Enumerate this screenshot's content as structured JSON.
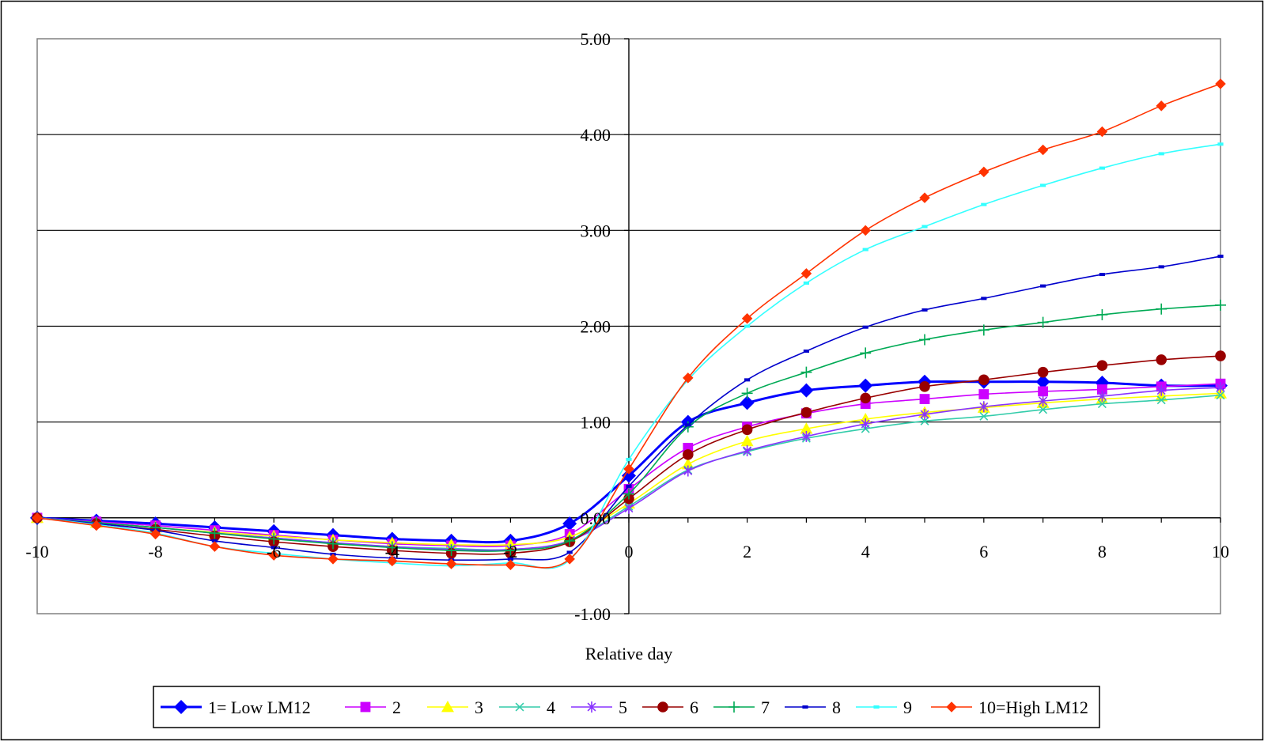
{
  "chart_data": {
    "type": "line",
    "title": "",
    "xlabel": "Relative day",
    "ylabel": "",
    "xlim": [
      -10,
      10
    ],
    "ylim": [
      -1,
      5
    ],
    "grid": "horizontal",
    "legend_position": "bottom",
    "x_ticks": [
      "-10",
      "-8",
      "-6",
      "-4",
      "-2",
      "0",
      "2",
      "4",
      "6",
      "8",
      "10"
    ],
    "y_ticks": [
      "-1.00",
      "0.00",
      "1.00",
      "2.00",
      "3.00",
      "4.00",
      "5.00"
    ],
    "x": [
      -10,
      -9,
      -8,
      -7,
      -6,
      -5,
      -4,
      -3,
      -2,
      -1,
      0,
      1,
      2,
      3,
      4,
      5,
      6,
      7,
      8,
      9,
      10
    ],
    "series": [
      {
        "name": "1= Low LM12",
        "color": "#0000ff",
        "marker": "diamond",
        "values": [
          0.0,
          -0.03,
          -0.06,
          -0.1,
          -0.14,
          -0.18,
          -0.22,
          -0.24,
          -0.24,
          -0.06,
          0.44,
          1.0,
          1.2,
          1.33,
          1.38,
          1.42,
          1.42,
          1.42,
          1.41,
          1.38,
          1.38
        ]
      },
      {
        "name": "2",
        "color": "#cc00ff",
        "marker": "square",
        "values": [
          0.0,
          -0.04,
          -0.08,
          -0.13,
          -0.18,
          -0.23,
          -0.27,
          -0.29,
          -0.29,
          -0.17,
          0.3,
          0.73,
          0.95,
          1.09,
          1.19,
          1.24,
          1.29,
          1.32,
          1.34,
          1.37,
          1.4
        ]
      },
      {
        "name": "3",
        "color": "#ffff00",
        "marker": "triangle",
        "values": [
          0.0,
          -0.05,
          -0.1,
          -0.15,
          -0.19,
          -0.23,
          -0.26,
          -0.28,
          -0.28,
          -0.2,
          0.15,
          0.56,
          0.8,
          0.93,
          1.03,
          1.1,
          1.15,
          1.2,
          1.24,
          1.27,
          1.3
        ]
      },
      {
        "name": "4",
        "color": "#33ccaa",
        "marker": "x",
        "values": [
          0.0,
          -0.05,
          -0.1,
          -0.16,
          -0.21,
          -0.26,
          -0.3,
          -0.32,
          -0.33,
          -0.24,
          0.12,
          0.5,
          0.69,
          0.83,
          0.93,
          1.01,
          1.06,
          1.13,
          1.19,
          1.23,
          1.28
        ]
      },
      {
        "name": "5",
        "color": "#8833ff",
        "marker": "star",
        "values": [
          0.0,
          -0.05,
          -0.1,
          -0.16,
          -0.21,
          -0.26,
          -0.3,
          -0.33,
          -0.33,
          -0.24,
          0.1,
          0.49,
          0.7,
          0.85,
          0.98,
          1.08,
          1.16,
          1.22,
          1.27,
          1.33,
          1.36
        ]
      },
      {
        "name": "6",
        "color": "#990000",
        "marker": "circle",
        "values": [
          0.0,
          -0.06,
          -0.12,
          -0.19,
          -0.25,
          -0.3,
          -0.34,
          -0.37,
          -0.37,
          -0.25,
          0.2,
          0.66,
          0.92,
          1.1,
          1.25,
          1.37,
          1.44,
          1.52,
          1.59,
          1.65,
          1.69
        ]
      },
      {
        "name": "7",
        "color": "#00aa55",
        "marker": "plus",
        "values": [
          0.0,
          -0.05,
          -0.1,
          -0.16,
          -0.22,
          -0.27,
          -0.31,
          -0.34,
          -0.34,
          -0.24,
          0.25,
          0.95,
          1.3,
          1.52,
          1.72,
          1.86,
          1.96,
          2.04,
          2.12,
          2.18,
          2.22
        ]
      },
      {
        "name": "8",
        "color": "#0000cc",
        "marker": "dash",
        "values": [
          0.0,
          -0.06,
          -0.13,
          -0.24,
          -0.31,
          -0.38,
          -0.42,
          -0.44,
          -0.43,
          -0.36,
          0.33,
          0.97,
          1.44,
          1.74,
          1.99,
          2.17,
          2.29,
          2.42,
          2.54,
          2.62,
          2.73
        ]
      },
      {
        "name": "9",
        "color": "#33ffff",
        "marker": "dash",
        "values": [
          0.0,
          -0.07,
          -0.16,
          -0.3,
          -0.37,
          -0.43,
          -0.47,
          -0.5,
          -0.47,
          -0.44,
          0.61,
          1.44,
          2.0,
          2.45,
          2.8,
          3.04,
          3.27,
          3.47,
          3.65,
          3.8,
          3.9
        ]
      },
      {
        "name": "10=High LM12",
        "color": "#ff3300",
        "marker": "diamond-small",
        "values": [
          0.0,
          -0.08,
          -0.17,
          -0.3,
          -0.39,
          -0.43,
          -0.45,
          -0.48,
          -0.49,
          -0.43,
          0.51,
          1.46,
          2.08,
          2.55,
          3.0,
          3.34,
          3.61,
          3.84,
          4.03,
          4.3,
          4.53
        ]
      }
    ]
  }
}
